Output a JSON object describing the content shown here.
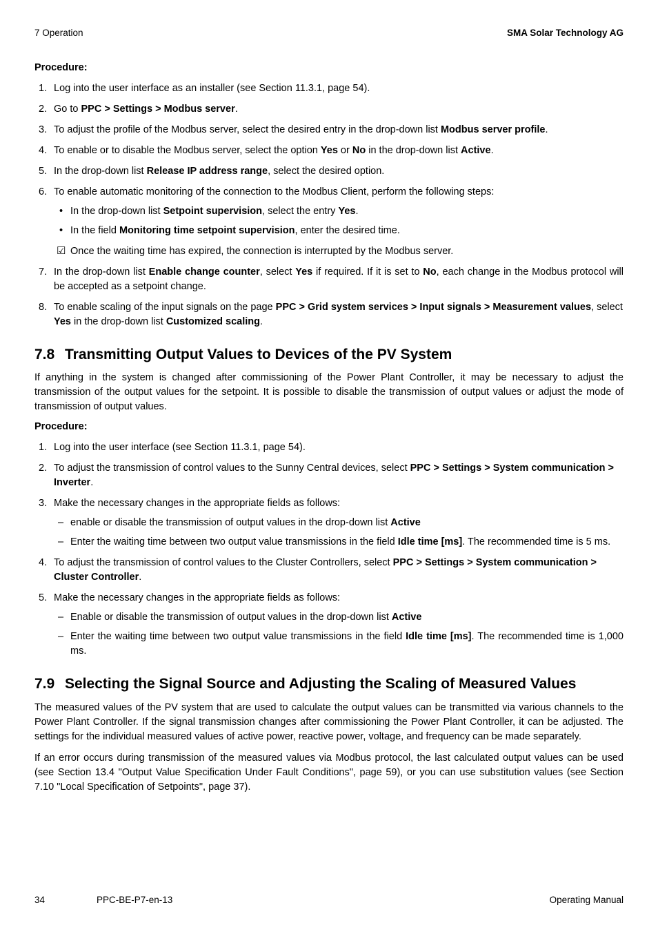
{
  "header": {
    "left": "7 Operation",
    "right": "SMA Solar Technology AG"
  },
  "proc1": {
    "label": "Procedure:",
    "it1": "Log into the user interface as an installer (see Section 11.3.1, page 54).",
    "it2_a": "Go to ",
    "it2_b": "PPC > Settings > Modbus server",
    "it2_c": ".",
    "it3_a": "To adjust the profile of the Modbus server, select the desired entry in the drop-down list ",
    "it3_b": "Modbus server profile",
    "it3_c": ".",
    "it4_a": "To enable or to disable the Modbus server, select the option ",
    "it4_b": "Yes",
    "it4_c": " or ",
    "it4_d": "No",
    "it4_e": " in the drop-down list ",
    "it4_f": "Active",
    "it4_g": ".",
    "it5_a": "In the drop-down list ",
    "it5_b": "Release IP address range",
    "it5_c": ", select the desired option.",
    "it6": "To enable automatic monitoring of the connection to the Modbus Client, perform the following steps:",
    "it6_b1_a": "In the drop-down list ",
    "it6_b1_b": "Setpoint supervision",
    "it6_b1_c": ", select the entry ",
    "it6_b1_d": "Yes",
    "it6_b1_e": ".",
    "it6_b2_a": "In the field ",
    "it6_b2_b": "Monitoring time setpoint supervision",
    "it6_b2_c": ", enter the desired time.",
    "it6_chk": "Once the waiting time has expired, the connection is interrupted by the Modbus server.",
    "it7_a": "In the drop-down list ",
    "it7_b": "Enable change counter",
    "it7_c": ", select ",
    "it7_d": "Yes",
    "it7_e": " if required. If it is set to ",
    "it7_f": "No",
    "it7_g": ", each change in the Modbus protocol will be accepted as a setpoint change.",
    "it8_a": "To enable scaling of the input signals on the page ",
    "it8_b": "PPC > Grid system services > Input signals > Measurement values",
    "it8_c": ", select ",
    "it8_d": "Yes",
    "it8_e": " in the drop-down list ",
    "it8_f": "Customized scaling",
    "it8_g": "."
  },
  "sec78": {
    "num": "7.8",
    "title": "Transmitting Output Values to Devices of the PV System",
    "intro": "If anything in the system is changed after commissioning of the Power Plant Controller, it may be necessary to adjust the transmission of the output values for the setpoint. It is possible to disable the transmission of output values or adjust the mode of transmission of output values."
  },
  "proc2": {
    "label": "Procedure:",
    "it1": "Log into the user interface (see Section 11.3.1, page 54).",
    "it2_a": "To adjust the transmission of control values to the Sunny Central devices, select ",
    "it2_b": "PPC > Settings > System communication > Inverter",
    "it2_c": ".",
    "it3": "Make the necessary changes in the appropriate fields as follows:",
    "it3_d1_a": "enable or disable the transmission of output values in the drop-down list ",
    "it3_d1_b": "Active",
    "it3_d2_a": "Enter the waiting time between two output value transmissions in the field ",
    "it3_d2_b": "Idle time [ms]",
    "it3_d2_c": ". The recommended time is 5 ms.",
    "it4_a": "To adjust the transmission of control values to the Cluster Controllers, select ",
    "it4_b": "PPC > Settings > System communication > Cluster Controller",
    "it4_c": ".",
    "it5": "Make the necessary changes in the appropriate fields as follows:",
    "it5_d1_a": "Enable or disable the transmission of output values in the drop-down list ",
    "it5_d1_b": "Active",
    "it5_d2_a": "Enter the waiting time between two output value transmissions in the field ",
    "it5_d2_b": "Idle time [ms]",
    "it5_d2_c": ". The recommended time is 1,000 ms."
  },
  "sec79": {
    "num": "7.9",
    "title": "Selecting the Signal Source and Adjusting the Scaling of Measured Values",
    "p1": "The measured values of the PV system that are used to calculate the output values can be transmitted via various channels to the Power Plant Controller. If the signal transmission changes after commissioning the Power Plant Controller, it can be adjusted. The settings for the individual measured values of active power, reactive power, voltage, and frequency can be made separately.",
    "p2": "If an error occurs during transmission of the measured values via Modbus protocol, the last calculated output values can be used (see Section 13.4 \"Output Value Specification Under Fault Conditions\", page 59), or you can use substitution values (see Section 7.10 \"Local Specification of Setpoints\", page 37)."
  },
  "footer": {
    "page": "34",
    "doc": "PPC-BE-P7-en-13",
    "right": "Operating Manual"
  }
}
